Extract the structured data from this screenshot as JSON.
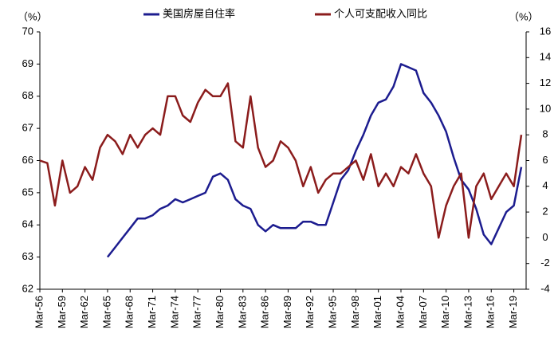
{
  "chart_data": {
    "type": "line",
    "y_unit": "（%）",
    "y2_unit": "（%）",
    "categories": [
      "Mar-56",
      null,
      null,
      "Mar-59",
      null,
      null,
      "Mar-62",
      null,
      null,
      "Mar-65",
      null,
      null,
      "Mar-68",
      null,
      null,
      "Mar-71",
      null,
      null,
      "Mar-74",
      null,
      null,
      "Mar-77",
      null,
      null,
      "Mar-80",
      null,
      null,
      "Mar-83",
      null,
      null,
      "Mar-86",
      null,
      null,
      "Mar-89",
      null,
      null,
      "Mar-92",
      null,
      null,
      "Mar-95",
      null,
      null,
      "Mar-98",
      null,
      null,
      "Mar-01",
      null,
      null,
      "Mar-04",
      null,
      null,
      "Mar-07",
      null,
      null,
      "Mar-10",
      null,
      null,
      "Mar-13",
      null,
      null,
      "Mar-16",
      null,
      null,
      "Mar-19",
      null
    ],
    "series": [
      {
        "name": "美国房屋自住率",
        "color": "#1c1c8f",
        "axis": "y",
        "values": [
          null,
          null,
          null,
          null,
          null,
          null,
          null,
          null,
          null,
          63.0,
          63.3,
          63.6,
          63.9,
          64.2,
          64.2,
          64.3,
          64.5,
          64.6,
          64.8,
          64.7,
          64.8,
          64.9,
          65.0,
          65.5,
          65.6,
          65.4,
          64.8,
          64.6,
          64.5,
          64.0,
          63.8,
          64.0,
          63.9,
          63.9,
          63.9,
          64.1,
          64.1,
          64.0,
          64.0,
          64.7,
          65.4,
          65.7,
          66.3,
          66.8,
          67.4,
          67.8,
          67.9,
          68.3,
          69.0,
          68.9,
          68.8,
          68.1,
          67.8,
          67.4,
          66.9,
          66.1,
          65.4,
          65.1,
          64.5,
          63.7,
          63.4,
          63.9,
          64.4,
          64.6,
          65.8
        ]
      },
      {
        "name": "个人可支配收入同比",
        "color": "#8b1c1c",
        "axis": "y2",
        "values": [
          6,
          5.8,
          2.5,
          6,
          3.5,
          4,
          5.5,
          4.5,
          7,
          8,
          7.5,
          6.5,
          8,
          7,
          8,
          8.5,
          8,
          11,
          11,
          9.5,
          9,
          10.5,
          11.5,
          11,
          11,
          12,
          7.5,
          7,
          11,
          7,
          5.5,
          6,
          7.5,
          7,
          6,
          4,
          5.5,
          3.5,
          4.5,
          5,
          5,
          5.5,
          6,
          4.5,
          6.5,
          4,
          5,
          4,
          5.5,
          5,
          6.5,
          5,
          4,
          0,
          2.5,
          4,
          5,
          0,
          4,
          5,
          3,
          4,
          5,
          4,
          8
        ]
      }
    ],
    "ylim": [
      62,
      70
    ],
    "yticks": [
      62,
      63,
      64,
      65,
      66,
      67,
      68,
      69,
      70
    ],
    "y2lim": [
      -4,
      16
    ],
    "y2ticks": [
      -4,
      -2,
      0,
      2,
      4,
      6,
      8,
      10,
      12,
      14,
      16
    ],
    "legend": "top"
  }
}
